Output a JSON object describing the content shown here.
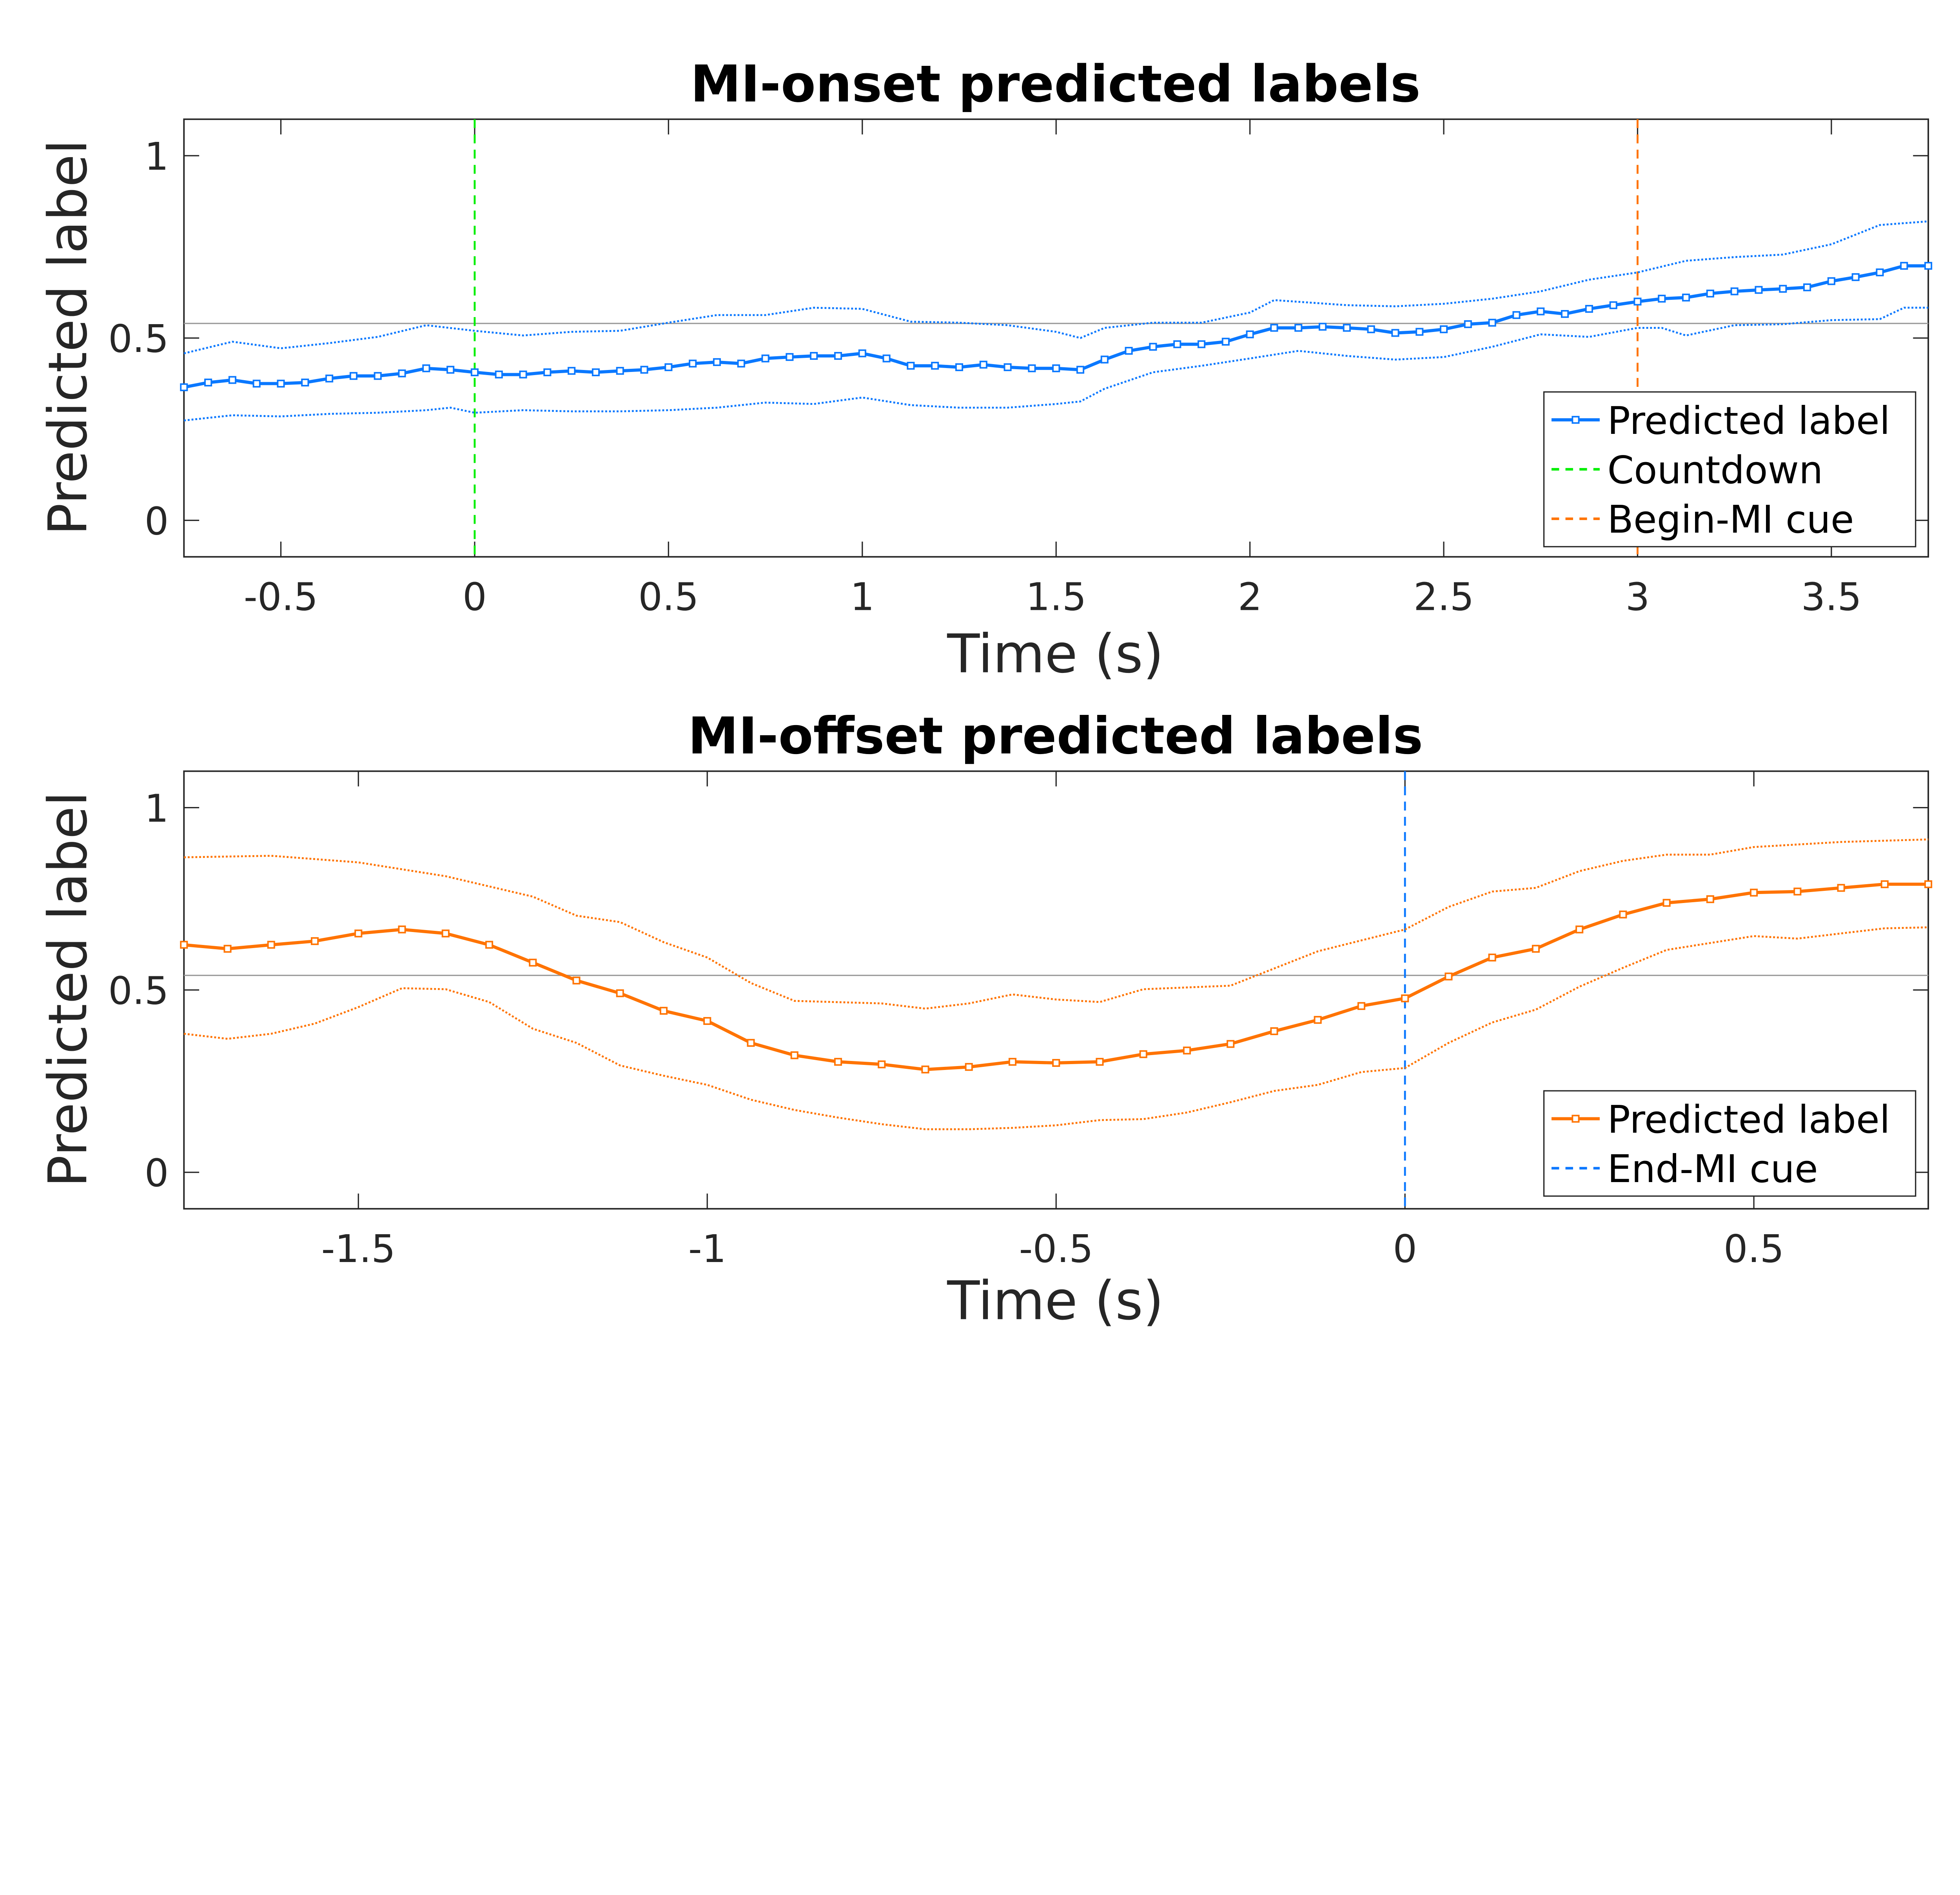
{
  "colors": {
    "blue": "#0a78ff",
    "orange": "#ff7300",
    "green": "#00ee00",
    "reference": "#9a9a9a",
    "axis": "#262626"
  },
  "chart_data": [
    {
      "type": "line",
      "title": "MI-onset predicted labels",
      "xlabel": "Time (s)",
      "ylabel": "Predicted label",
      "xlim": [
        -0.75,
        3.75
      ],
      "ylim": [
        -0.1,
        1.1
      ],
      "xticks": [
        "-0.5",
        "0",
        "0.5",
        "1",
        "1.5",
        "2",
        "2.5",
        "3",
        "3.5"
      ],
      "xtick_values": [
        -0.5,
        0,
        0.5,
        1,
        1.5,
        2,
        2.5,
        3,
        3.5
      ],
      "yticks": [
        "0",
        "0.5",
        "1"
      ],
      "ytick_values": [
        0,
        0.5,
        1
      ],
      "grid": false,
      "legend_placement": "bottom-right",
      "reference_line_y": 0.54,
      "series": [
        {
          "name": "Predicted label",
          "color": "blue",
          "style": "solid-square-markers",
          "x_start": -0.75,
          "x_step": 0.0625,
          "values": [
            0.365,
            0.378,
            0.385,
            0.375,
            0.375,
            0.378,
            0.389,
            0.396,
            0.396,
            0.403,
            0.417,
            0.413,
            0.406,
            0.4,
            0.4,
            0.406,
            0.41,
            0.406,
            0.41,
            0.413,
            0.42,
            0.43,
            0.434,
            0.43,
            0.444,
            0.448,
            0.451,
            0.451,
            0.458,
            0.444,
            0.424,
            0.424,
            0.42,
            0.427,
            0.42,
            0.417,
            0.417,
            0.413,
            0.441,
            0.465,
            0.476,
            0.483,
            0.483,
            0.49,
            0.51,
            0.528,
            0.528,
            0.531,
            0.528,
            0.524,
            0.514,
            0.517,
            0.524,
            0.538,
            0.542,
            0.563,
            0.573,
            0.566,
            0.58,
            0.59,
            0.6,
            0.608,
            0.611,
            0.622,
            0.628,
            0.632,
            0.635,
            0.639,
            0.656,
            0.667,
            0.68,
            0.698,
            0.698
          ]
        },
        {
          "color": "blue",
          "style": "dotted",
          "role": "upper bound",
          "x": [
            -0.75,
            -0.625,
            -0.5,
            -0.375,
            -0.25,
            -0.125,
            0,
            0.125,
            0.25,
            0.375,
            0.5,
            0.625,
            0.75,
            0.875,
            1.0,
            1.125,
            1.25,
            1.375,
            1.5,
            1.5625,
            1.625,
            1.75,
            1.875,
            2.0,
            2.0625,
            2.25,
            2.375,
            2.5,
            2.625,
            2.75,
            2.875,
            3.0,
            3.125,
            3.25,
            3.375,
            3.5,
            3.625,
            3.75
          ],
          "values": [
            0.458,
            0.49,
            0.472,
            0.486,
            0.503,
            0.535,
            0.52,
            0.507,
            0.517,
            0.52,
            0.542,
            0.563,
            0.563,
            0.583,
            0.58,
            0.545,
            0.542,
            0.535,
            0.517,
            0.5,
            0.528,
            0.542,
            0.542,
            0.57,
            0.604,
            0.59,
            0.587,
            0.594,
            0.608,
            0.628,
            0.66,
            0.68,
            0.712,
            0.722,
            0.729,
            0.757,
            0.81,
            0.82
          ]
        },
        {
          "color": "blue",
          "style": "dotted",
          "role": "lower bound",
          "x": [
            -0.75,
            -0.625,
            -0.5,
            -0.375,
            -0.25,
            -0.125,
            -0.0625,
            0,
            0.125,
            0.25,
            0.375,
            0.5,
            0.625,
            0.75,
            0.875,
            1.0,
            1.125,
            1.25,
            1.375,
            1.5,
            1.5625,
            1.625,
            1.75,
            1.875,
            2.0,
            2.125,
            2.25,
            2.375,
            2.5,
            2.625,
            2.75,
            2.875,
            3.0,
            3.0625,
            3.125,
            3.25,
            3.375,
            3.5,
            3.625,
            3.6875,
            3.75
          ],
          "values": [
            0.274,
            0.288,
            0.285,
            0.292,
            0.295,
            0.302,
            0.309,
            0.295,
            0.302,
            0.299,
            0.299,
            0.302,
            0.309,
            0.323,
            0.319,
            0.337,
            0.316,
            0.309,
            0.309,
            0.319,
            0.326,
            0.361,
            0.406,
            0.424,
            0.444,
            0.465,
            0.451,
            0.441,
            0.448,
            0.476,
            0.51,
            0.503,
            0.528,
            0.528,
            0.507,
            0.535,
            0.538,
            0.549,
            0.552,
            0.583,
            0.583
          ]
        }
      ],
      "vlines": [
        {
          "name": "Countdown",
          "x": 0,
          "color": "green"
        },
        {
          "name": "Begin-MI cue",
          "x": 3,
          "color": "orange"
        }
      ],
      "legend": [
        "Predicted label",
        "Countdown",
        "Begin-MI cue"
      ]
    },
    {
      "type": "line",
      "title": "MI-offset predicted labels",
      "xlabel": "Time (s)",
      "ylabel": "Predicted label",
      "xlim": [
        -1.75,
        0.75
      ],
      "ylim": [
        -0.1,
        1.1
      ],
      "xticks": [
        "-1.5",
        "-1",
        "-0.5",
        "0",
        "0.5"
      ],
      "xtick_values": [
        -1.5,
        -1,
        -0.5,
        0,
        0.5
      ],
      "yticks": [
        "0",
        "0.5",
        "1"
      ],
      "ytick_values": [
        0,
        0.5,
        1
      ],
      "grid": false,
      "legend_placement": "bottom-right",
      "reference_line_y": 0.54,
      "series": [
        {
          "name": "Predicted label",
          "color": "orange",
          "style": "solid-square-markers",
          "x_start": -1.75,
          "x_step": 0.0625,
          "values": [
            0.624,
            0.613,
            0.624,
            0.634,
            0.655,
            0.666,
            0.655,
            0.624,
            0.575,
            0.526,
            0.491,
            0.443,
            0.415,
            0.355,
            0.321,
            0.303,
            0.296,
            0.282,
            0.289,
            0.303,
            0.3,
            0.303,
            0.324,
            0.334,
            0.352,
            0.387,
            0.418,
            0.456,
            0.477,
            0.537,
            0.589,
            0.613,
            0.666,
            0.707,
            0.739,
            0.749,
            0.767,
            0.77,
            0.78,
            0.79,
            0.79
          ]
        },
        {
          "color": "orange",
          "style": "dotted",
          "role": "upper bound",
          "x": [
            -1.75,
            -1.625,
            -1.5,
            -1.375,
            -1.25,
            -1.1875,
            -1.125,
            -1.0625,
            -1.0,
            -0.9375,
            -0.875,
            -0.75,
            -0.6875,
            -0.625,
            -0.5625,
            -0.5,
            -0.4375,
            -0.375,
            -0.25,
            -0.125,
            0,
            0.0625,
            0.125,
            0.1875,
            0.25,
            0.3125,
            0.375,
            0.4375,
            0.5,
            0.625,
            0.75
          ],
          "values": [
            0.864,
            0.868,
            0.85,
            0.812,
            0.756,
            0.704,
            0.686,
            0.631,
            0.589,
            0.519,
            0.47,
            0.463,
            0.449,
            0.463,
            0.488,
            0.474,
            0.467,
            0.502,
            0.512,
            0.606,
            0.666,
            0.728,
            0.77,
            0.78,
            0.826,
            0.854,
            0.871,
            0.871,
            0.892,
            0.906,
            0.913
          ]
        },
        {
          "color": "orange",
          "style": "dotted",
          "role": "lower bound",
          "x": [
            -1.75,
            -1.6875,
            -1.625,
            -1.5625,
            -1.5,
            -1.4375,
            -1.375,
            -1.3125,
            -1.25,
            -1.1875,
            -1.125,
            -1.0625,
            -1.0,
            -0.9375,
            -0.875,
            -0.8125,
            -0.75,
            -0.6875,
            -0.625,
            -0.5625,
            -0.5,
            -0.4375,
            -0.375,
            -0.3125,
            -0.25,
            -0.1875,
            -0.125,
            -0.0625,
            0,
            0.0625,
            0.125,
            0.1875,
            0.25,
            0.3125,
            0.375,
            0.5,
            0.5625,
            0.625,
            0.6875,
            0.75
          ],
          "values": [
            0.38,
            0.366,
            0.38,
            0.408,
            0.453,
            0.505,
            0.502,
            0.467,
            0.394,
            0.355,
            0.293,
            0.265,
            0.24,
            0.199,
            0.171,
            0.15,
            0.132,
            0.118,
            0.118,
            0.122,
            0.129,
            0.143,
            0.146,
            0.164,
            0.192,
            0.223,
            0.24,
            0.275,
            0.286,
            0.355,
            0.411,
            0.446,
            0.509,
            0.561,
            0.61,
            0.648,
            0.641,
            0.655,
            0.669,
            0.672
          ]
        }
      ],
      "vlines": [
        {
          "name": "End-MI cue",
          "x": 0,
          "color": "blue"
        }
      ],
      "legend": [
        "Predicted label",
        "End-MI cue"
      ]
    }
  ]
}
